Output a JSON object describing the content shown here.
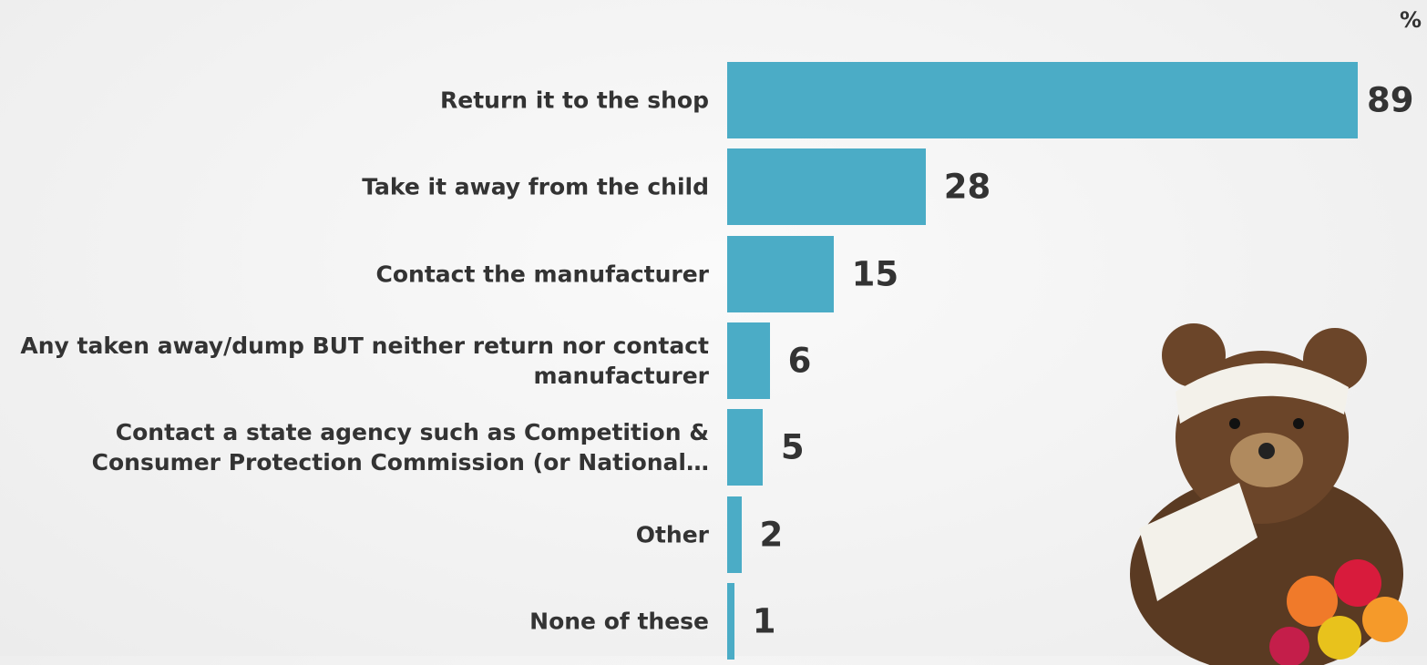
{
  "chart_data": {
    "type": "bar",
    "orientation": "horizontal",
    "unit": "%",
    "categories": [
      "Return it to the shop",
      "Take it away from the child",
      "Contact the manufacturer",
      "Any taken away/dump BUT neither return nor contact manufacturer",
      "Contact a state agency such as Competition & Consumer Protection Commission (or National…",
      "Other",
      "None of these"
    ],
    "values": [
      89,
      28,
      15,
      6,
      5,
      2,
      1
    ],
    "color": "#4bacc6"
  }
}
